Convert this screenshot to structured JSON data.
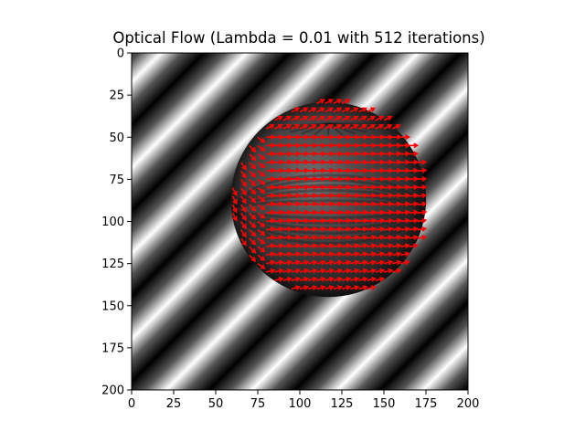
{
  "chart_data": {
    "type": "quiver-image",
    "title": "Optical Flow (Lambda = 0.01 with 512 iterations)",
    "xlabel": "",
    "ylabel": "",
    "xlim": [
      0,
      200
    ],
    "ylim": [
      200,
      0
    ],
    "x_ticks": [
      0,
      25,
      50,
      75,
      100,
      125,
      150,
      175,
      200
    ],
    "y_ticks": [
      0,
      25,
      50,
      75,
      100,
      125,
      150,
      175,
      200
    ],
    "background": {
      "kind": "diagonal grayscale stripes",
      "stripe_period": 36,
      "sphere": {
        "cx": 117,
        "cy": 87,
        "r": 58
      }
    },
    "arrow_color": "#ff0000",
    "vector_grid_step": 5,
    "vectors_note": "red arrows on the sphere region"
  }
}
